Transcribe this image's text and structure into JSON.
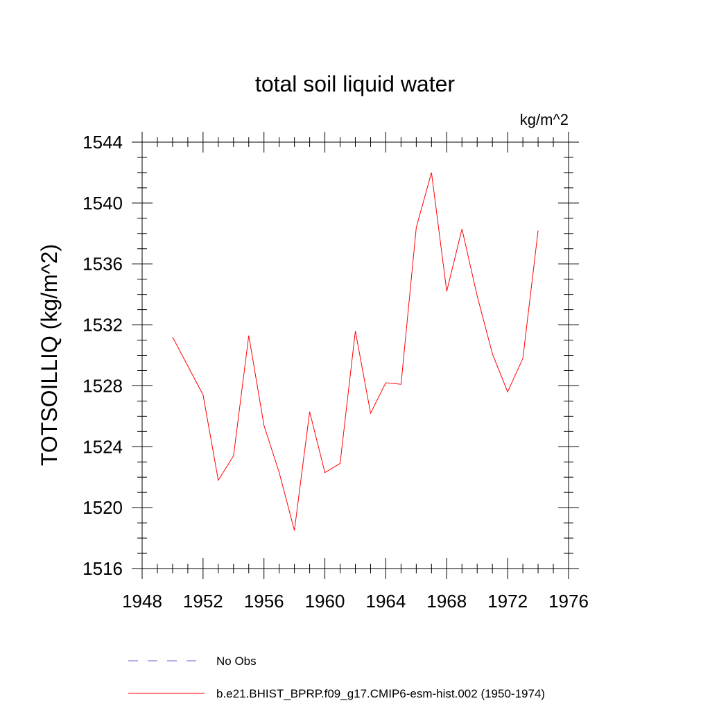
{
  "chart_data": {
    "type": "line",
    "title": "total soil liquid water",
    "units_label": "kg/m^2",
    "ylabel": "TOTSOILLIQ  (kg/m^2)",
    "xlabel": "",
    "xlim": [
      1948,
      1976
    ],
    "ylim": [
      1516,
      1544
    ],
    "x_ticks": [
      1948,
      1952,
      1956,
      1960,
      1964,
      1968,
      1972,
      1976
    ],
    "y_ticks": [
      1516,
      1520,
      1524,
      1528,
      1532,
      1536,
      1540,
      1544
    ],
    "grid": false,
    "legend_position": "bottom",
    "legend": [
      {
        "label": "No Obs",
        "color": "#6a5acd",
        "style": "dashed"
      },
      {
        "label": "b.e21.BHIST_BPRP.f09_g17.CMIP6-esm-hist.002 (1950-1974)",
        "color": "#ff0000",
        "style": "solid"
      }
    ],
    "series": [
      {
        "color": "#ff0000",
        "x": [
          1950,
          1951,
          1952,
          1953,
          1954,
          1955,
          1956,
          1957,
          1958,
          1959,
          1960,
          1961,
          1962,
          1963,
          1964,
          1965,
          1966,
          1967,
          1968,
          1969,
          1970,
          1971,
          1972,
          1973,
          1974
        ],
        "y": [
          1531.2,
          1529.3,
          1527.4,
          1521.8,
          1523.4,
          1531.3,
          1525.4,
          1522.3,
          1518.5,
          1526.3,
          1522.3,
          1522.9,
          1531.6,
          1526.2,
          1528.2,
          1528.1,
          1538.4,
          1542.0,
          1534.2,
          1538.3,
          1533.9,
          1530.1,
          1527.6,
          1529.8,
          1538.2
        ]
      }
    ]
  }
}
